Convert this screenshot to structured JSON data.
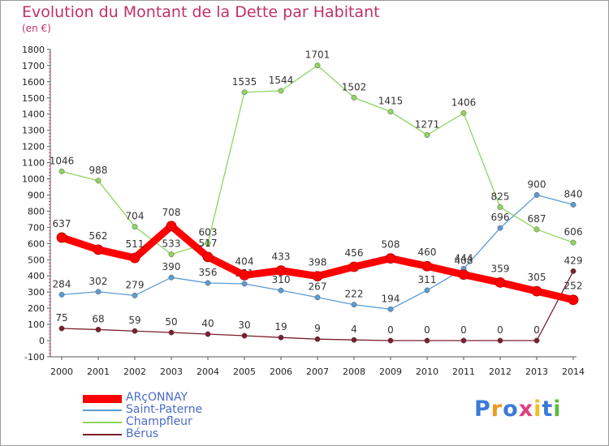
{
  "chart_data": {
    "type": "line",
    "title": "Evolution du Montant de la Dette par Habitant",
    "subtitle": "(en €)",
    "x": [
      "2000",
      "2001",
      "2002",
      "2003",
      "2004",
      "2005",
      "2006",
      "2007",
      "2008",
      "2009",
      "2010",
      "2011",
      "2012",
      "2013",
      "2014"
    ],
    "ylim": [
      -100,
      1800
    ],
    "yticks": [
      -100,
      0,
      100,
      200,
      300,
      400,
      500,
      600,
      700,
      800,
      900,
      1000,
      1100,
      1200,
      1300,
      1400,
      1500,
      1600,
      1700,
      1800
    ],
    "grid": false,
    "legend_position": "bottom-left",
    "series": [
      {
        "name": "ARçONNAY",
        "color": "#ff0000",
        "values": [
          637,
          562,
          511,
          708,
          517,
          404,
          433,
          398,
          456,
          508,
          460,
          408,
          359,
          305,
          252
        ]
      },
      {
        "name": "Saint-Paterne",
        "color": "#5b9bd5",
        "values": [
          284,
          302,
          279,
          390,
          356,
          351,
          310,
          267,
          222,
          194,
          311,
          444,
          696,
          900,
          840
        ]
      },
      {
        "name": "Champfleur",
        "color": "#8fd460",
        "values": [
          1046,
          988,
          704,
          533,
          603,
          1535,
          1544,
          1701,
          1502,
          1415,
          1271,
          1406,
          825,
          687,
          606
        ]
      },
      {
        "name": "Bérus",
        "color": "#7b1e2e",
        "values": [
          75,
          68,
          59,
          50,
          40,
          30,
          19,
          9,
          4,
          0,
          0,
          0,
          0,
          0,
          429
        ]
      }
    ]
  },
  "logo": {
    "letters": [
      "P",
      "r",
      "o",
      "x",
      "i",
      "t",
      "i"
    ],
    "colors": [
      "#3a7ad8",
      "#f09a20",
      "#3a7ad8",
      "#e04080",
      "#f0c020",
      "#3a7ad8",
      "#60b840"
    ]
  }
}
